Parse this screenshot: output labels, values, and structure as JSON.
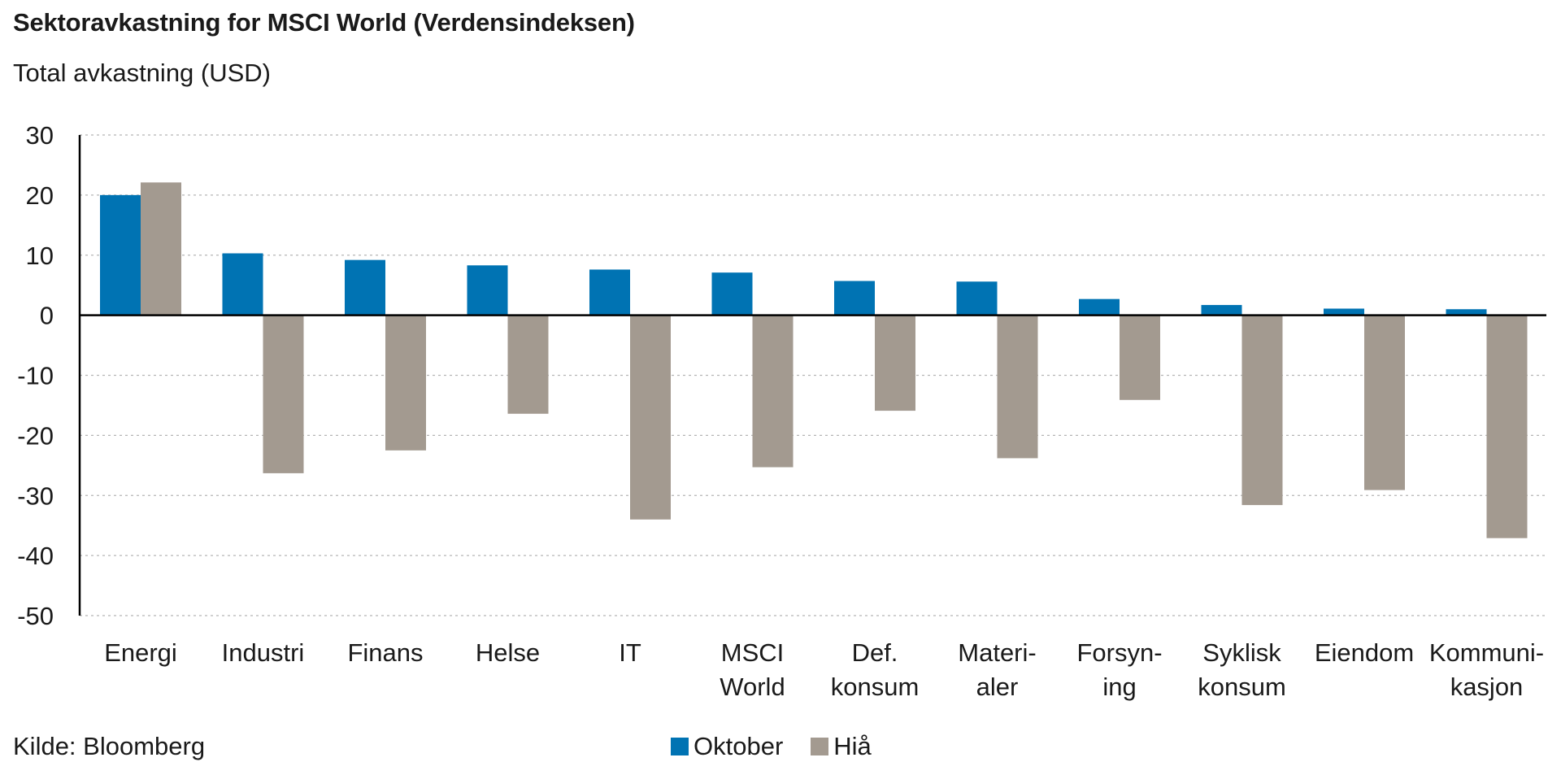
{
  "header": {
    "title": "Sektoravkastning for MSCI World (Verdensindeksen)",
    "subtitle": "Total avkastning (USD)"
  },
  "footer": {
    "source": "Kilde: Bloomberg"
  },
  "colors": {
    "oktober": "#0073b3",
    "hia": "#a39a90"
  },
  "chart_data": {
    "type": "bar",
    "title": "Sektoravkastning for MSCI World (Verdensindeksen)",
    "ylabel": "Total avkastning (USD)",
    "xlabel": "",
    "ylim": [
      -50,
      30
    ],
    "yticks": [
      "30",
      "20",
      "10",
      "0",
      "-10",
      "-20",
      "-30",
      "-40",
      "-50"
    ],
    "grid": true,
    "legend_position": "bottom-center",
    "categories": [
      [
        "Energi"
      ],
      [
        "Industri"
      ],
      [
        "Finans"
      ],
      [
        "Helse"
      ],
      [
        "IT"
      ],
      [
        "MSCI",
        "World"
      ],
      [
        "Def.",
        "konsum"
      ],
      [
        "Materi-",
        "aler"
      ],
      [
        "Forsyn-",
        "ing"
      ],
      [
        "Syklisk",
        "konsum"
      ],
      [
        "Eiendom"
      ],
      [
        "Kommuni-",
        "kasjon"
      ]
    ],
    "series": [
      {
        "name": "Oktober",
        "values": [
          20.0,
          10.3,
          9.2,
          8.3,
          7.6,
          7.1,
          5.7,
          5.6,
          2.7,
          1.7,
          1.1,
          1.0
        ]
      },
      {
        "name": "Hiå",
        "values": [
          22.1,
          -26.3,
          -22.5,
          -16.4,
          -34.0,
          -25.3,
          -15.9,
          -23.8,
          -14.1,
          -31.6,
          -29.1,
          -37.1
        ]
      }
    ]
  }
}
